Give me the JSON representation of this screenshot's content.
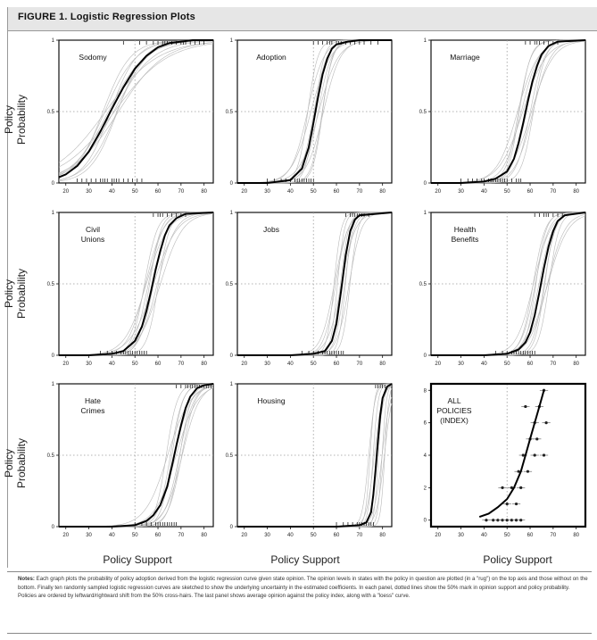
{
  "figure": {
    "title": "FIGURE 1.   Logistic Regression Plots",
    "ylabel": "Policy Probability",
    "xlabel": "Policy Support",
    "notes_label": "Notes:",
    "notes_text": "Each graph plots the probability of policy adoption derived from the logistic regression curve given state opinion. The opinion levels in states with the policy in question are plotted (in a \"rug\") on the top axis and those without on the bottom. Finally ten randomly sampled logistic regression curves are sketched to show the underlying uncertainty in the estimated coefficients. In each panel, dotted lines show the 50% mark in opinion support and policy probability. Policies are ordered by leftward/rightward shift from the 50% cross-hairs. The last panel shows average opinion against the policy index, along with a \"loess\" curve."
  },
  "colors": {
    "main_curve": "#000000",
    "sample_curves": "#b9b9b9",
    "gridlines": "#9a9a9a",
    "title_bar": "#e6e6e6"
  },
  "chart_data": [
    {
      "type": "line",
      "panel_label": [
        "Sodomy"
      ],
      "x_ticks": [
        20,
        30,
        40,
        50,
        60,
        70,
        80
      ],
      "y_ticks": [
        "0",
        "0.5",
        "1"
      ],
      "xlim": [
        17,
        84
      ],
      "ylim": [
        0,
        1
      ],
      "series": [
        {
          "x": [
            17,
            20,
            25,
            30,
            35,
            40,
            45,
            50,
            55,
            60,
            65,
            70,
            75,
            80,
            84
          ],
          "values": [
            0.04,
            0.06,
            0.12,
            0.22,
            0.36,
            0.52,
            0.67,
            0.8,
            0.89,
            0.95,
            0.98,
            0.99,
            1.0,
            1.0,
            1.0
          ]
        }
      ],
      "rug_top": [
        45,
        52,
        55,
        58,
        60,
        62,
        63,
        64,
        66,
        68,
        70,
        71,
        72,
        74,
        76,
        78,
        80
      ],
      "rug_bottom": [
        25,
        27,
        29,
        31,
        33,
        35,
        36,
        37,
        38,
        40,
        41,
        42,
        43,
        45,
        47,
        49,
        51,
        53
      ]
    },
    {
      "type": "line",
      "panel_label": [
        "Adoption"
      ],
      "x_ticks": [
        20,
        30,
        40,
        50,
        60,
        70,
        80
      ],
      "y_ticks": [
        "0",
        "0.5",
        "1"
      ],
      "xlim": [
        17,
        84
      ],
      "ylim": [
        0,
        1
      ],
      "series": [
        {
          "x": [
            17,
            30,
            40,
            45,
            48,
            50,
            52,
            54,
            56,
            58,
            60,
            65,
            70,
            84
          ],
          "values": [
            0.0,
            0.0,
            0.02,
            0.1,
            0.25,
            0.42,
            0.6,
            0.76,
            0.87,
            0.94,
            0.97,
            0.99,
            1.0,
            1.0
          ]
        }
      ],
      "rug_top": [
        50,
        52,
        54,
        56,
        57,
        58,
        60,
        61,
        62,
        64,
        66,
        68,
        70,
        72,
        75,
        78
      ],
      "rug_bottom": [
        30,
        33,
        36,
        38,
        40,
        42,
        43,
        44,
        45,
        46,
        47,
        48,
        49,
        50
      ]
    },
    {
      "type": "line",
      "panel_label": [
        "Marriage"
      ],
      "x_ticks": [
        20,
        30,
        40,
        50,
        60,
        70,
        80
      ],
      "y_ticks": [
        "0",
        "0.5",
        "1"
      ],
      "xlim": [
        17,
        84
      ],
      "ylim": [
        0,
        1
      ],
      "series": [
        {
          "x": [
            17,
            30,
            40,
            45,
            50,
            53,
            55,
            57,
            59,
            61,
            63,
            65,
            68,
            72,
            84
          ],
          "values": [
            0.0,
            0.0,
            0.01,
            0.03,
            0.08,
            0.17,
            0.28,
            0.42,
            0.57,
            0.71,
            0.82,
            0.9,
            0.96,
            0.99,
            1.0
          ]
        }
      ],
      "rug_top": [
        58,
        60,
        62,
        63,
        64,
        66,
        68,
        70,
        72
      ],
      "rug_bottom": [
        30,
        33,
        35,
        37,
        39,
        40,
        42,
        43,
        44,
        45,
        46,
        47,
        48,
        49,
        50,
        52,
        54,
        55,
        56
      ]
    },
    {
      "type": "line",
      "panel_label": [
        "Civil",
        "Unions"
      ],
      "x_ticks": [
        20,
        30,
        40,
        50,
        60,
        70,
        80
      ],
      "y_ticks": [
        "0",
        "0.5",
        "1"
      ],
      "xlim": [
        17,
        84
      ],
      "ylim": [
        0,
        1
      ],
      "series": [
        {
          "x": [
            17,
            30,
            40,
            45,
            50,
            53,
            55,
            57,
            59,
            61,
            63,
            65,
            68,
            72,
            84
          ],
          "values": [
            0.0,
            0.0,
            0.01,
            0.03,
            0.1,
            0.2,
            0.31,
            0.45,
            0.6,
            0.73,
            0.84,
            0.91,
            0.96,
            0.99,
            1.0
          ]
        }
      ],
      "rug_top": [
        58,
        60,
        61,
        62,
        64,
        66,
        68,
        70,
        72
      ],
      "rug_bottom": [
        35,
        38,
        40,
        42,
        44,
        45,
        46,
        47,
        48,
        49,
        50,
        51,
        52,
        53,
        54,
        55
      ]
    },
    {
      "type": "line",
      "panel_label": [
        "Jobs"
      ],
      "x_ticks": [
        20,
        30,
        40,
        50,
        60,
        70,
        80
      ],
      "y_ticks": [
        "0",
        "0.5",
        "1"
      ],
      "xlim": [
        17,
        84
      ],
      "ylim": [
        0,
        1
      ],
      "series": [
        {
          "x": [
            17,
            40,
            50,
            55,
            58,
            60,
            62,
            64,
            66,
            68,
            70,
            84
          ],
          "values": [
            0.0,
            0.0,
            0.01,
            0.03,
            0.1,
            0.22,
            0.45,
            0.7,
            0.87,
            0.95,
            0.98,
            1.0
          ]
        }
      ],
      "rug_top": [
        64,
        66,
        67,
        68,
        69,
        70,
        71,
        72,
        74
      ],
      "rug_bottom": [
        45,
        48,
        50,
        52,
        54,
        55,
        56,
        57,
        58,
        59,
        60,
        61,
        62,
        63
      ]
    },
    {
      "type": "line",
      "panel_label": [
        "Health",
        "Benefits"
      ],
      "x_ticks": [
        20,
        30,
        40,
        50,
        60,
        70,
        80
      ],
      "y_ticks": [
        "0",
        "0.5",
        "1"
      ],
      "xlim": [
        17,
        84
      ],
      "ylim": [
        0,
        1
      ],
      "series": [
        {
          "x": [
            17,
            40,
            50,
            55,
            58,
            60,
            62,
            64,
            66,
            68,
            70,
            72,
            75,
            84
          ],
          "values": [
            0.0,
            0.0,
            0.01,
            0.04,
            0.09,
            0.16,
            0.28,
            0.44,
            0.61,
            0.76,
            0.87,
            0.94,
            0.98,
            1.0
          ]
        }
      ],
      "rug_top": [
        62,
        64,
        66,
        67,
        68,
        70,
        72,
        74
      ],
      "rug_bottom": [
        45,
        48,
        50,
        52,
        53,
        54,
        55,
        56,
        57,
        58,
        59,
        60,
        61,
        62
      ]
    },
    {
      "type": "line",
      "panel_label": [
        "Hate",
        "Crimes"
      ],
      "x_ticks": [
        20,
        30,
        40,
        50,
        60,
        70,
        80
      ],
      "y_ticks": [
        "0",
        "0.5",
        "1"
      ],
      "xlim": [
        17,
        84
      ],
      "ylim": [
        0,
        1
      ],
      "series": [
        {
          "x": [
            17,
            40,
            50,
            55,
            58,
            61,
            64,
            66,
            68,
            70,
            72,
            74,
            77,
            80,
            84
          ],
          "values": [
            0.0,
            0.0,
            0.01,
            0.04,
            0.08,
            0.15,
            0.28,
            0.42,
            0.57,
            0.71,
            0.83,
            0.91,
            0.97,
            0.99,
            1.0
          ]
        }
      ],
      "rug_top": [
        68,
        70,
        72,
        73,
        74,
        75,
        76,
        77,
        78,
        79,
        80,
        81,
        82,
        83
      ],
      "rug_bottom": [
        50,
        53,
        55,
        57,
        59,
        60,
        61,
        62,
        63,
        64,
        65,
        66,
        67,
        68
      ]
    },
    {
      "type": "line",
      "panel_label": [
        "Housing"
      ],
      "x_ticks": [
        20,
        30,
        40,
        50,
        60,
        70,
        80
      ],
      "y_ticks": [
        "0",
        "0.5",
        "1"
      ],
      "xlim": [
        17,
        84
      ],
      "ylim": [
        0,
        1
      ],
      "series": [
        {
          "x": [
            17,
            60,
            70,
            73,
            75,
            76,
            77,
            78,
            79,
            80,
            82,
            84
          ],
          "values": [
            0.0,
            0.0,
            0.01,
            0.03,
            0.1,
            0.22,
            0.4,
            0.6,
            0.78,
            0.9,
            0.98,
            1.0
          ]
        }
      ],
      "rug_top": [
        77,
        78,
        79,
        80,
        81
      ],
      "rug_bottom": [
        60,
        63,
        65,
        67,
        69,
        70,
        71,
        72,
        73,
        74,
        75,
        76
      ]
    },
    {
      "type": "scatter",
      "panel_label": [
        "ALL",
        "POLICIES",
        "(INDEX)"
      ],
      "x_ticks": [
        20,
        30,
        40,
        50,
        60,
        70,
        80
      ],
      "y_ticks": [
        "0",
        "2",
        "4",
        "6",
        "8"
      ],
      "xlim": [
        17,
        84
      ],
      "ylim": [
        -0.4,
        8.4
      ],
      "points": [
        {
          "x": 66,
          "y": 8
        },
        {
          "x": 64,
          "y": 7
        },
        {
          "x": 58,
          "y": 7
        },
        {
          "x": 62,
          "y": 6
        },
        {
          "x": 67,
          "y": 6
        },
        {
          "x": 60,
          "y": 5
        },
        {
          "x": 63,
          "y": 5
        },
        {
          "x": 57,
          "y": 4
        },
        {
          "x": 62,
          "y": 4
        },
        {
          "x": 66,
          "y": 4
        },
        {
          "x": 55,
          "y": 3
        },
        {
          "x": 59,
          "y": 3
        },
        {
          "x": 48,
          "y": 2
        },
        {
          "x": 52,
          "y": 2
        },
        {
          "x": 56,
          "y": 2
        },
        {
          "x": 50,
          "y": 1
        },
        {
          "x": 54,
          "y": 1
        },
        {
          "x": 41,
          "y": 0
        },
        {
          "x": 44,
          "y": 0
        },
        {
          "x": 46,
          "y": 0
        },
        {
          "x": 48,
          "y": 0
        },
        {
          "x": 50,
          "y": 0
        },
        {
          "x": 52,
          "y": 0
        },
        {
          "x": 54,
          "y": 0
        },
        {
          "x": 56,
          "y": 0
        }
      ],
      "loess": {
        "x": [
          38,
          42,
          46,
          50,
          53,
          56,
          58,
          60,
          62,
          64,
          66
        ],
        "values": [
          0.2,
          0.4,
          0.8,
          1.3,
          2.0,
          3.0,
          4.0,
          5.0,
          6.0,
          7.0,
          8.0
        ]
      }
    }
  ]
}
